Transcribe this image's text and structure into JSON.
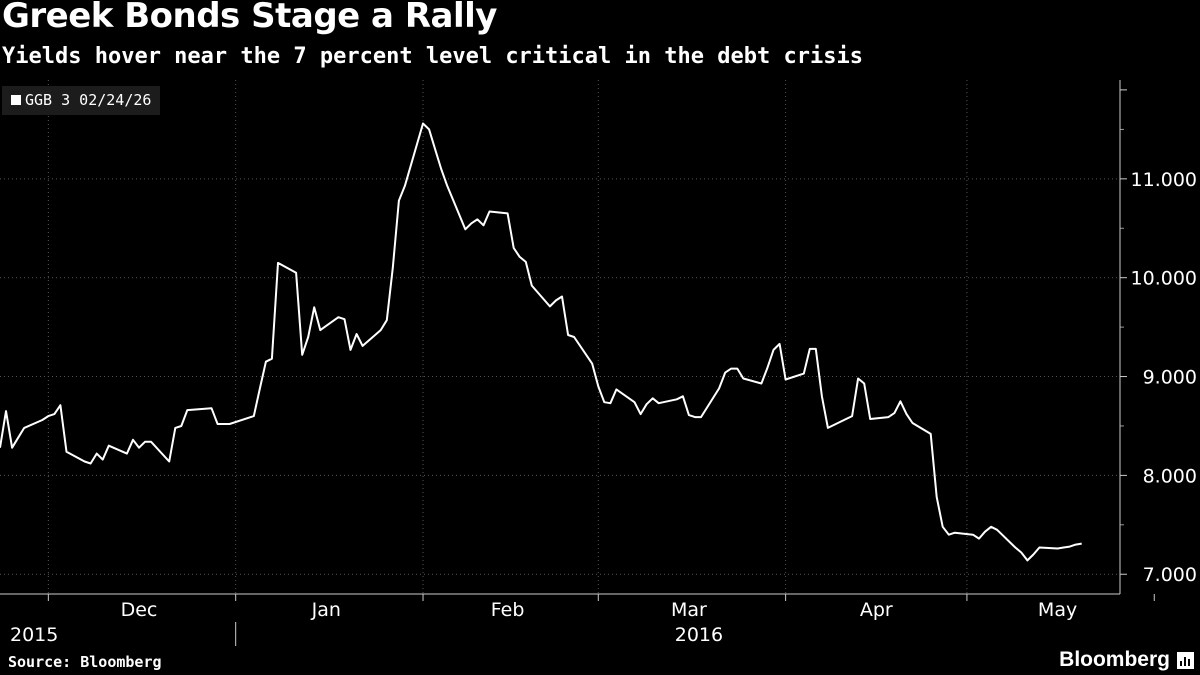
{
  "chart_data": {
    "type": "line",
    "title": "Greek Bonds Stage a Rally",
    "subtitle": "Yields hover near the 7 percent level critical in the debt crisis",
    "series": [
      {
        "name": "GGB 3 02/24/26",
        "color": "#ffffff",
        "points": [
          [
            "2015-11-23",
            8.28
          ],
          [
            "2015-11-24",
            8.65
          ],
          [
            "2015-11-25",
            8.28
          ],
          [
            "2015-11-26",
            8.38
          ],
          [
            "2015-11-27",
            8.48
          ],
          [
            "2015-11-30",
            8.56
          ],
          [
            "2015-12-01",
            8.6
          ],
          [
            "2015-12-02",
            8.62
          ],
          [
            "2015-12-03",
            8.71
          ],
          [
            "2015-12-04",
            8.24
          ],
          [
            "2015-12-07",
            8.14
          ],
          [
            "2015-12-08",
            8.12
          ],
          [
            "2015-12-09",
            8.22
          ],
          [
            "2015-12-10",
            8.16
          ],
          [
            "2015-12-11",
            8.3
          ],
          [
            "2015-12-14",
            8.22
          ],
          [
            "2015-12-15",
            8.36
          ],
          [
            "2015-12-16",
            8.28
          ],
          [
            "2015-12-17",
            8.34
          ],
          [
            "2015-12-18",
            8.34
          ],
          [
            "2015-12-21",
            8.14
          ],
          [
            "2015-12-22",
            8.48
          ],
          [
            "2015-12-23",
            8.5
          ],
          [
            "2015-12-24",
            8.66
          ],
          [
            "2015-12-28",
            8.68
          ],
          [
            "2015-12-29",
            8.52
          ],
          [
            "2015-12-30",
            8.52
          ],
          [
            "2015-12-31",
            8.52
          ],
          [
            "2016-01-04",
            8.6
          ],
          [
            "2016-01-05",
            8.88
          ],
          [
            "2016-01-06",
            9.15
          ],
          [
            "2016-01-07",
            9.18
          ],
          [
            "2016-01-08",
            10.15
          ],
          [
            "2016-01-11",
            10.05
          ],
          [
            "2016-01-12",
            9.22
          ],
          [
            "2016-01-13",
            9.4
          ],
          [
            "2016-01-14",
            9.7
          ],
          [
            "2016-01-15",
            9.47
          ],
          [
            "2016-01-18",
            9.6
          ],
          [
            "2016-01-19",
            9.58
          ],
          [
            "2016-01-20",
            9.27
          ],
          [
            "2016-01-21",
            9.43
          ],
          [
            "2016-01-22",
            9.31
          ],
          [
            "2016-01-25",
            9.47
          ],
          [
            "2016-01-26",
            9.57
          ],
          [
            "2016-01-27",
            10.1
          ],
          [
            "2016-01-28",
            10.78
          ],
          [
            "2016-01-29",
            10.93
          ],
          [
            "2016-02-01",
            11.56
          ],
          [
            "2016-02-02",
            11.5
          ],
          [
            "2016-02-03",
            11.3
          ],
          [
            "2016-02-04",
            11.1
          ],
          [
            "2016-02-05",
            10.93
          ],
          [
            "2016-02-08",
            10.49
          ],
          [
            "2016-02-09",
            10.55
          ],
          [
            "2016-02-10",
            10.59
          ],
          [
            "2016-02-11",
            10.53
          ],
          [
            "2016-02-12",
            10.67
          ],
          [
            "2016-02-15",
            10.65
          ],
          [
            "2016-02-16",
            10.3
          ],
          [
            "2016-02-17",
            10.21
          ],
          [
            "2016-02-18",
            10.16
          ],
          [
            "2016-02-19",
            9.92
          ],
          [
            "2016-02-22",
            9.71
          ],
          [
            "2016-02-23",
            9.77
          ],
          [
            "2016-02-24",
            9.81
          ],
          [
            "2016-02-25",
            9.42
          ],
          [
            "2016-02-26",
            9.4
          ],
          [
            "2016-02-29",
            9.13
          ],
          [
            "2016-03-01",
            8.9
          ],
          [
            "2016-03-02",
            8.74
          ],
          [
            "2016-03-03",
            8.73
          ],
          [
            "2016-03-04",
            8.87
          ],
          [
            "2016-03-07",
            8.74
          ],
          [
            "2016-03-08",
            8.62
          ],
          [
            "2016-03-09",
            8.72
          ],
          [
            "2016-03-10",
            8.78
          ],
          [
            "2016-03-11",
            8.73
          ],
          [
            "2016-03-14",
            8.77
          ],
          [
            "2016-03-15",
            8.8
          ],
          [
            "2016-03-16",
            8.61
          ],
          [
            "2016-03-17",
            8.59
          ],
          [
            "2016-03-18",
            8.59
          ],
          [
            "2016-03-21",
            8.88
          ],
          [
            "2016-03-22",
            9.04
          ],
          [
            "2016-03-23",
            9.08
          ],
          [
            "2016-03-24",
            9.08
          ],
          [
            "2016-03-25",
            8.98
          ],
          [
            "2016-03-28",
            8.93
          ],
          [
            "2016-03-29",
            9.09
          ],
          [
            "2016-03-30",
            9.27
          ],
          [
            "2016-03-31",
            9.33
          ],
          [
            "2016-04-01",
            8.97
          ],
          [
            "2016-04-04",
            9.03
          ],
          [
            "2016-04-05",
            9.28
          ],
          [
            "2016-04-06",
            9.28
          ],
          [
            "2016-04-07",
            8.8
          ],
          [
            "2016-04-08",
            8.48
          ],
          [
            "2016-04-11",
            8.57
          ],
          [
            "2016-04-12",
            8.6
          ],
          [
            "2016-04-13",
            8.98
          ],
          [
            "2016-04-14",
            8.93
          ],
          [
            "2016-04-15",
            8.57
          ],
          [
            "2016-04-18",
            8.59
          ],
          [
            "2016-04-19",
            8.63
          ],
          [
            "2016-04-20",
            8.75
          ],
          [
            "2016-04-21",
            8.62
          ],
          [
            "2016-04-22",
            8.53
          ],
          [
            "2016-04-25",
            8.42
          ],
          [
            "2016-04-26",
            7.78
          ],
          [
            "2016-04-27",
            7.48
          ],
          [
            "2016-04-28",
            7.4
          ],
          [
            "2016-04-29",
            7.42
          ],
          [
            "2016-05-02",
            7.4
          ],
          [
            "2016-05-03",
            7.36
          ],
          [
            "2016-05-04",
            7.43
          ],
          [
            "2016-05-05",
            7.48
          ],
          [
            "2016-05-06",
            7.45
          ],
          [
            "2016-05-09",
            7.27
          ],
          [
            "2016-05-10",
            7.22
          ],
          [
            "2016-05-11",
            7.14
          ],
          [
            "2016-05-12",
            7.2
          ],
          [
            "2016-05-13",
            7.27
          ],
          [
            "2016-05-16",
            7.26
          ],
          [
            "2016-05-17",
            7.27
          ],
          [
            "2016-05-18",
            7.28
          ],
          [
            "2016-05-19",
            7.3
          ],
          [
            "2016-05-20",
            7.31
          ]
        ]
      }
    ],
    "yaxis": {
      "min": 6.8,
      "max": 12.0,
      "ticks": [
        7,
        8,
        9,
        10,
        11
      ],
      "tick_labels": [
        "7.000",
        "8.000",
        "9.000",
        "10.000",
        "11.000"
      ],
      "position": "right"
    },
    "xaxis": {
      "start": "2015-11-23",
      "end": "2016-05-26",
      "gridlines": [
        "2015-12-01",
        "2016-01-01",
        "2016-02-01",
        "2016-03-01",
        "2016-04-01",
        "2016-05-01",
        "2016-06-01"
      ],
      "months": [
        {
          "label": "Dec",
          "date": "2015-12-16"
        },
        {
          "label": "Jan",
          "date": "2016-01-16"
        },
        {
          "label": "Feb",
          "date": "2016-02-15"
        },
        {
          "label": "Mar",
          "date": "2016-03-16"
        },
        {
          "label": "Apr",
          "date": "2016-04-16"
        },
        {
          "label": "May",
          "date": "2016-05-16"
        }
      ],
      "years": [
        {
          "label": "2015",
          "date": "2015-11-27"
        },
        {
          "label": "2016",
          "date": "2016-03-16"
        }
      ],
      "year_break": "2016-01-01"
    },
    "grid": true,
    "legend": "top-left"
  },
  "footer": {
    "source": "Source: Bloomberg",
    "brand": "Bloomberg"
  },
  "colors": {
    "background": "#000000",
    "line": "#ffffff",
    "grid": "#555555",
    "legend_bg": "#1c1c1c"
  }
}
